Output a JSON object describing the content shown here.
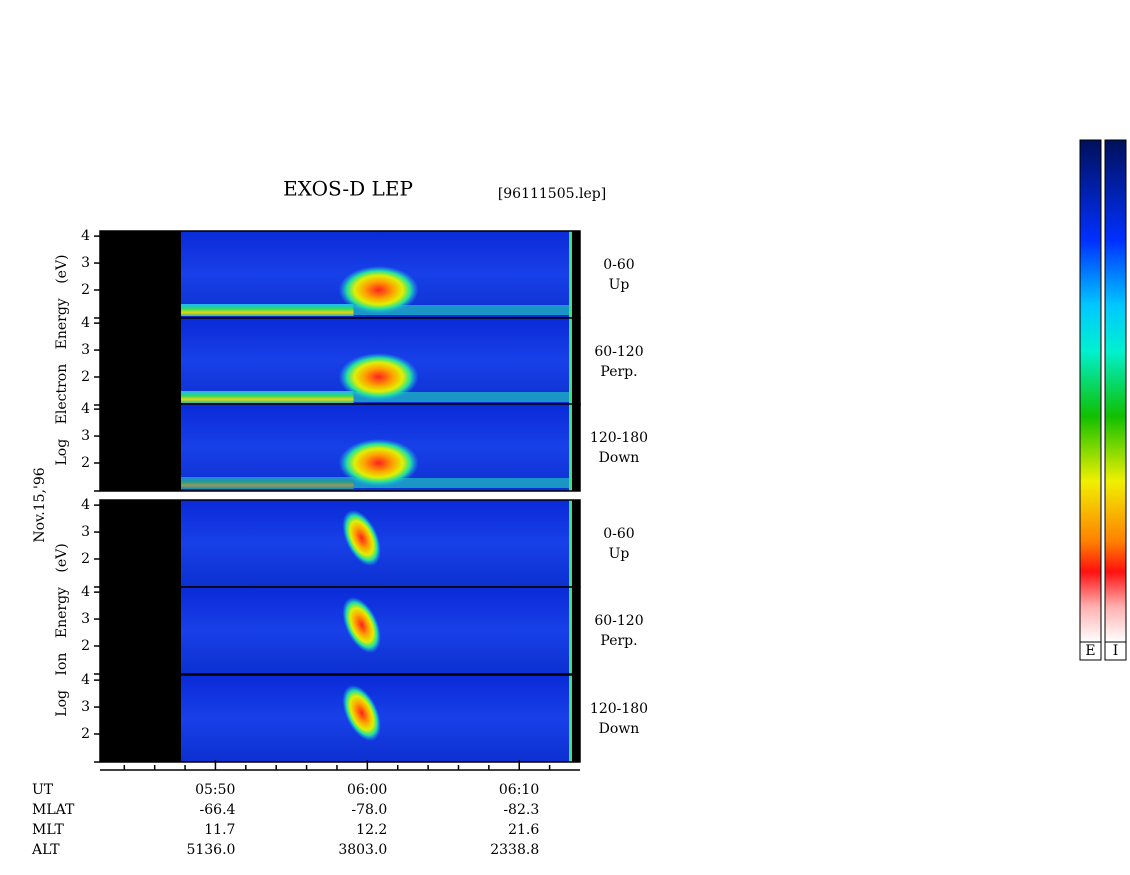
{
  "chart_data": {
    "type": "spectrogram",
    "title": "EXOS-D LEP",
    "file_label": "[96111505.lep]",
    "date_label": "Nov.15,'96",
    "y_axis_labels": [
      "Log Electron Energy (eV)",
      "Log Ion Energy (eV)"
    ],
    "xlim": [
      342.4,
      374.0
    ],
    "xticks": [
      {
        "value": 350,
        "label": "05:50"
      },
      {
        "value": 360,
        "label": "06:00"
      },
      {
        "value": 370,
        "label": "06:10"
      }
    ],
    "minor_xticks": [
      344,
      346,
      348,
      352,
      354,
      356,
      358,
      362,
      364,
      366,
      368,
      372
    ],
    "panels": [
      {
        "species": "electron",
        "angle": "0-60",
        "direction": "Up",
        "ylim": [
          0.96,
          4.19
        ],
        "yticks": [
          2,
          3,
          4
        ]
      },
      {
        "species": "electron",
        "angle": "60-120",
        "direction": "Perp.",
        "ylim": [
          0.96,
          4.19
        ],
        "yticks": [
          2,
          3,
          4
        ]
      },
      {
        "species": "electron",
        "angle": "120-180",
        "direction": "Down",
        "ylim": [
          0.96,
          4.19
        ],
        "yticks": [
          2,
          3,
          4
        ]
      },
      {
        "species": "ion",
        "angle": "0-60",
        "direction": "Up",
        "ylim": [
          0.96,
          4.19
        ],
        "yticks": [
          2,
          3,
          4
        ]
      },
      {
        "species": "ion",
        "angle": "60-120",
        "direction": "Perp.",
        "ylim": [
          0.96,
          4.19
        ],
        "yticks": [
          2,
          3,
          4
        ]
      },
      {
        "species": "ion",
        "angle": "120-180",
        "direction": "Down",
        "ylim": [
          0.96,
          4.19
        ],
        "yticks": [
          2,
          3,
          4
        ]
      }
    ],
    "orbit_table": {
      "rows": [
        {
          "label": "UT",
          "values": [
            "05:50",
            "06:00",
            "06:10"
          ]
        },
        {
          "label": "MLAT",
          "values": [
            "-66.4",
            "-78.0",
            "-82.3"
          ]
        },
        {
          "label": "MLT",
          "values": [
            "11.7",
            "12.2",
            "21.6"
          ]
        },
        {
          "label": "ALT",
          "values": [
            "5136.0",
            "3803.0",
            "2338.8"
          ]
        }
      ]
    },
    "colorbar_labels": [
      "E",
      "I"
    ]
  }
}
